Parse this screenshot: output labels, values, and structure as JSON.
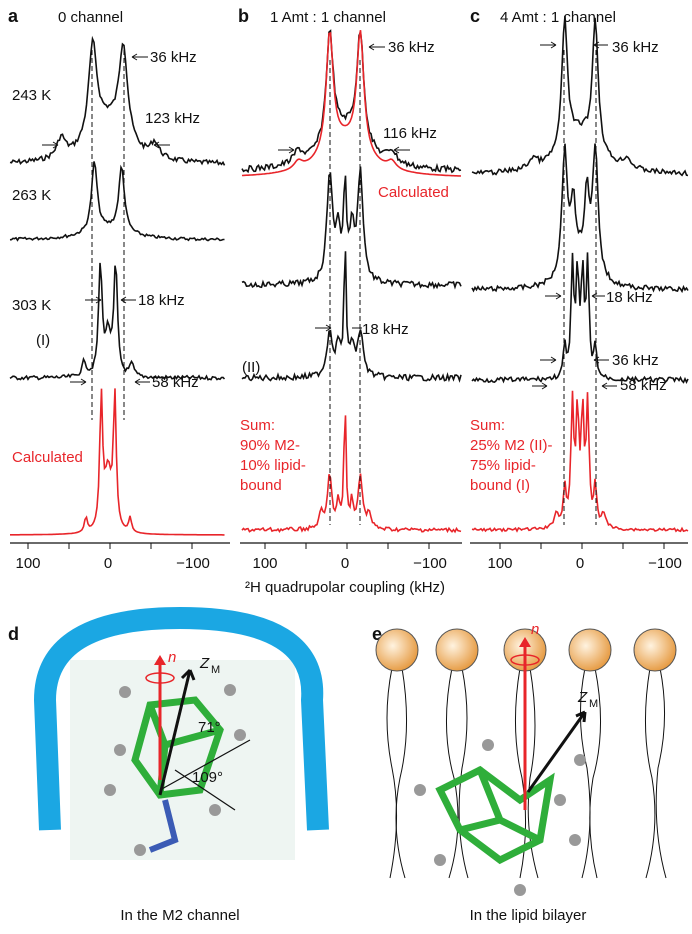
{
  "panel_a": {
    "label": "a",
    "title": "0 channel",
    "temp_1": "243 K",
    "temp_2": "263 K",
    "temp_3": "303 K",
    "ann_36": "36 kHz",
    "ann_123": "123 kHz",
    "ann_18": "18 kHz",
    "ann_58": "58 kHz",
    "form": "(I)",
    "calc": "Calculated",
    "ticks": [
      "100",
      "0",
      "−100"
    ]
  },
  "panel_b": {
    "label": "b",
    "title": "1 Amt : 1 channel",
    "ann_36": "36 kHz",
    "ann_116": "116 kHz",
    "calc": "Calculated",
    "ann_18": "18 kHz",
    "form": "(II)",
    "sum": [
      "Sum:",
      "90% M2-",
      "10% lipid-",
      "bound"
    ],
    "ticks": [
      "100",
      "0",
      "−100"
    ]
  },
  "panel_c": {
    "label": "c",
    "title": "4 Amt : 1 channel",
    "ann_36": "36 kHz",
    "ann_18": "18 kHz",
    "ann_36b": "36 kHz",
    "ann_58": "58 kHz",
    "sum": [
      "Sum:",
      "25% M2 (II)-",
      "75% lipid-",
      "bound (I)"
    ],
    "ticks": [
      "100",
      "0",
      "−100"
    ]
  },
  "axis_title": "²H quadrupolar coupling (kHz)",
  "panel_d": {
    "label": "d",
    "n": "n",
    "z": "Z",
    "z_sub": "M",
    "angle_1": "71°",
    "angle_2": "109°",
    "caption": "In the M2 channel"
  },
  "panel_e": {
    "label": "e",
    "n": "n",
    "z": "Z",
    "z_sub": "M",
    "caption": "In the lipid bilayer"
  }
}
